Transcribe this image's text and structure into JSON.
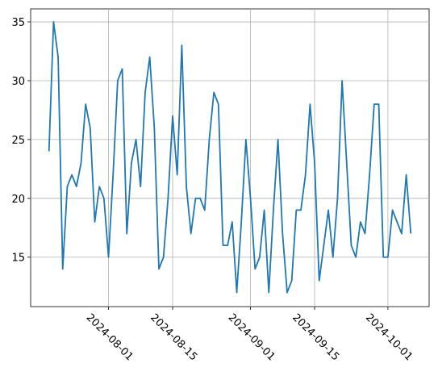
{
  "chart_data": {
    "type": "line",
    "color": "#1f77b4",
    "grid": true,
    "x": [
      "2024-07-19",
      "2024-07-20",
      "2024-07-21",
      "2024-07-22",
      "2024-07-23",
      "2024-07-24",
      "2024-07-25",
      "2024-07-26",
      "2024-07-27",
      "2024-07-28",
      "2024-07-29",
      "2024-07-30",
      "2024-07-31",
      "2024-08-01",
      "2024-08-02",
      "2024-08-03",
      "2024-08-04",
      "2024-08-05",
      "2024-08-06",
      "2024-08-07",
      "2024-08-08",
      "2024-08-09",
      "2024-08-10",
      "2024-08-11",
      "2024-08-12",
      "2024-08-13",
      "2024-08-14",
      "2024-08-15",
      "2024-08-16",
      "2024-08-17",
      "2024-08-18",
      "2024-08-19",
      "2024-08-20",
      "2024-08-21",
      "2024-08-22",
      "2024-08-23",
      "2024-08-24",
      "2024-08-25",
      "2024-08-26",
      "2024-08-27",
      "2024-08-28",
      "2024-08-29",
      "2024-08-30",
      "2024-08-31",
      "2024-09-01",
      "2024-09-02",
      "2024-09-03",
      "2024-09-04",
      "2024-09-05",
      "2024-09-06",
      "2024-09-07",
      "2024-09-08",
      "2024-09-09",
      "2024-09-10",
      "2024-09-11",
      "2024-09-12",
      "2024-09-13",
      "2024-09-14",
      "2024-09-15",
      "2024-09-16",
      "2024-09-17",
      "2024-09-18",
      "2024-09-19",
      "2024-09-20",
      "2024-09-21",
      "2024-09-22",
      "2024-09-23",
      "2024-09-24",
      "2024-09-25",
      "2024-09-26",
      "2024-09-27",
      "2024-09-28",
      "2024-09-29",
      "2024-09-30",
      "2024-10-01",
      "2024-10-02",
      "2024-10-03",
      "2024-10-04",
      "2024-10-05",
      "2024-10-06"
    ],
    "values": [
      24,
      35,
      32,
      14,
      21,
      22,
      21,
      23,
      28,
      26,
      18,
      21,
      20,
      15,
      22,
      30,
      31,
      17,
      23,
      25,
      21,
      29,
      32,
      26,
      14,
      15,
      20,
      27,
      22,
      33,
      21,
      17,
      20,
      20,
      19,
      25,
      29,
      28,
      16,
      16,
      18,
      12,
      18,
      25,
      20,
      14,
      15,
      19,
      12,
      19,
      25,
      17,
      12,
      13,
      19,
      19,
      22,
      28,
      23,
      13,
      16,
      19,
      15,
      20,
      30,
      23,
      16,
      15,
      18,
      17,
      22,
      28,
      28,
      15,
      15,
      19,
      18,
      17,
      22,
      17
    ],
    "xlim": [
      "2024-07-15",
      "2024-10-10"
    ],
    "xticks": [
      "2024-08-01",
      "2024-08-15",
      "2024-09-01",
      "2024-09-15",
      "2024-10-01"
    ],
    "ylim": [
      10.8,
      36.1
    ],
    "yticks": [
      15,
      20,
      25,
      30,
      35
    ]
  }
}
